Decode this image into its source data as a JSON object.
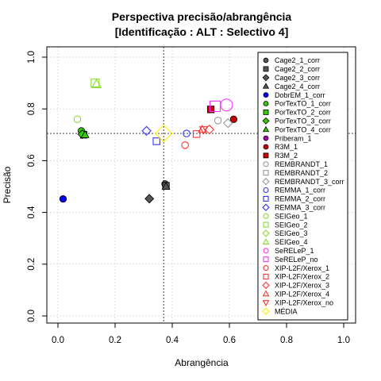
{
  "chart_data": {
    "type": "scatter",
    "title": "Perspectiva precisão/abrangência",
    "subtitle": "[Identificação : ALT : Selectivo 4]",
    "xlabel": "Abrangência",
    "ylabel": "Precisão",
    "xlim": [
      0,
      1
    ],
    "ylim": [
      0,
      1
    ],
    "xticks": [
      "0.0",
      "0.2",
      "0.4",
      "0.6",
      "0.8",
      "1.0"
    ],
    "yticks": [
      "0.0",
      "0.2",
      "0.4",
      "0.6",
      "0.8",
      "1.0"
    ],
    "grid": true,
    "legend_position": "right",
    "reference_lines": {
      "x": 0.37,
      "y": 0.705
    },
    "series": [
      {
        "name": "Cage2_1_corr",
        "marker": "circle",
        "filled": true,
        "color": "#555555",
        "points": [
          [
            0.375,
            0.51
          ]
        ]
      },
      {
        "name": "Cage2_2_corr",
        "marker": "square",
        "filled": true,
        "color": "#555555",
        "points": [
          [
            0.378,
            0.503
          ]
        ]
      },
      {
        "name": "Cage2_3_corr",
        "marker": "diamond",
        "filled": true,
        "color": "#555555",
        "points": [
          [
            0.32,
            0.453
          ]
        ]
      },
      {
        "name": "Cage2_4_corr",
        "marker": "triangle",
        "filled": true,
        "color": "#555555",
        "points": [
          [
            0.378,
            0.5
          ]
        ]
      },
      {
        "name": "DobrEM_1_corr",
        "marker": "circle",
        "filled": true,
        "color": "#0000ff",
        "points": [
          [
            0.018,
            0.452
          ]
        ]
      },
      {
        "name": "PorTexTO_1_corr",
        "marker": "circle",
        "filled": true,
        "color": "#33cc00",
        "points": [
          [
            0.082,
            0.715
          ]
        ]
      },
      {
        "name": "PorTexTO_2_corr",
        "marker": "square",
        "filled": true,
        "color": "#33cc00",
        "points": [
          [
            0.09,
            0.7
          ]
        ]
      },
      {
        "name": "PorTexTO_3_corr",
        "marker": "diamond",
        "filled": true,
        "color": "#33cc00",
        "points": [
          [
            0.085,
            0.702
          ]
        ]
      },
      {
        "name": "PorTexTO_4_corr",
        "marker": "triangle",
        "filled": true,
        "color": "#33cc00",
        "points": [
          [
            0.095,
            0.7
          ]
        ]
      },
      {
        "name": "Priberam_1",
        "marker": "circle",
        "filled": true,
        "color": "#aa00aa",
        "points": []
      },
      {
        "name": "R3M_1",
        "marker": "circle",
        "filled": true,
        "color": "#cc0000",
        "points": [
          [
            0.615,
            0.76
          ]
        ]
      },
      {
        "name": "R3M_2",
        "marker": "square",
        "filled": true,
        "color": "#cc0000",
        "points": [
          [
            0.535,
            0.798
          ]
        ]
      },
      {
        "name": "REMBRANDT_1",
        "marker": "circle",
        "filled": false,
        "color": "#999999",
        "points": [
          [
            0.56,
            0.755
          ]
        ]
      },
      {
        "name": "REMBRANDT_2",
        "marker": "square",
        "filled": false,
        "color": "#999999",
        "points": []
      },
      {
        "name": "REMBRANDT_3_corr",
        "marker": "diamond",
        "filled": false,
        "color": "#999999",
        "points": [
          [
            0.595,
            0.745
          ]
        ]
      },
      {
        "name": "REMMA_1_corr",
        "marker": "circle",
        "filled": false,
        "color": "#3333ff",
        "points": [
          [
            0.45,
            0.705
          ]
        ]
      },
      {
        "name": "REMMA_2_corr",
        "marker": "square",
        "filled": false,
        "color": "#3333ff",
        "points": [
          [
            0.345,
            0.675
          ]
        ]
      },
      {
        "name": "REMMA_3_corr",
        "marker": "diamond",
        "filled": false,
        "color": "#3333ff",
        "points": [
          [
            0.31,
            0.715
          ]
        ]
      },
      {
        "name": "SEIGeo_1",
        "marker": "circle",
        "filled": false,
        "color": "#88dd33",
        "points": [
          [
            0.068,
            0.76
          ]
        ]
      },
      {
        "name": "SEIGeo_2",
        "marker": "square",
        "filled": false,
        "color": "#88dd33",
        "points": [
          [
            0.13,
            0.9
          ]
        ]
      },
      {
        "name": "SEIGeo_3",
        "marker": "diamond",
        "filled": false,
        "color": "#88dd33",
        "points": []
      },
      {
        "name": "SEIGeo_4",
        "marker": "triangle",
        "filled": false,
        "color": "#88dd33",
        "points": [
          [
            0.135,
            0.895
          ]
        ]
      },
      {
        "name": "SeRELeP_1",
        "marker": "circle",
        "filled": false,
        "color": "#ff33ff",
        "points": [
          [
            0.59,
            0.815
          ]
        ]
      },
      {
        "name": "SeRELeP_no",
        "marker": "square",
        "filled": false,
        "color": "#ff33ff",
        "points": [
          [
            0.55,
            0.81
          ]
        ]
      },
      {
        "name": "XIP-L2F/Xerox_1",
        "marker": "circle",
        "filled": false,
        "color": "#ff3333",
        "points": [
          [
            0.445,
            0.66
          ]
        ]
      },
      {
        "name": "XIP-L2F/Xerox_2",
        "marker": "square",
        "filled": false,
        "color": "#ff3333",
        "points": [
          [
            0.485,
            0.703
          ]
        ]
      },
      {
        "name": "XIP-L2F/Xerox_3",
        "marker": "diamond",
        "filled": false,
        "color": "#ff3333",
        "points": [
          [
            0.53,
            0.72
          ]
        ]
      },
      {
        "name": "XIP-L2F/Xerox_4",
        "marker": "triangle",
        "filled": false,
        "color": "#ff3333",
        "points": [
          [
            0.505,
            0.72
          ]
        ]
      },
      {
        "name": "XIP-L2F/Xerox_no",
        "marker": "triangle-down",
        "filled": false,
        "color": "#ff3333",
        "points": [
          [
            0.51,
            0.72
          ]
        ]
      },
      {
        "name": "MÉDIA",
        "marker": "diamond",
        "filled": false,
        "color": "#ffee00",
        "points": [
          [
            0.37,
            0.705
          ]
        ]
      }
    ]
  }
}
